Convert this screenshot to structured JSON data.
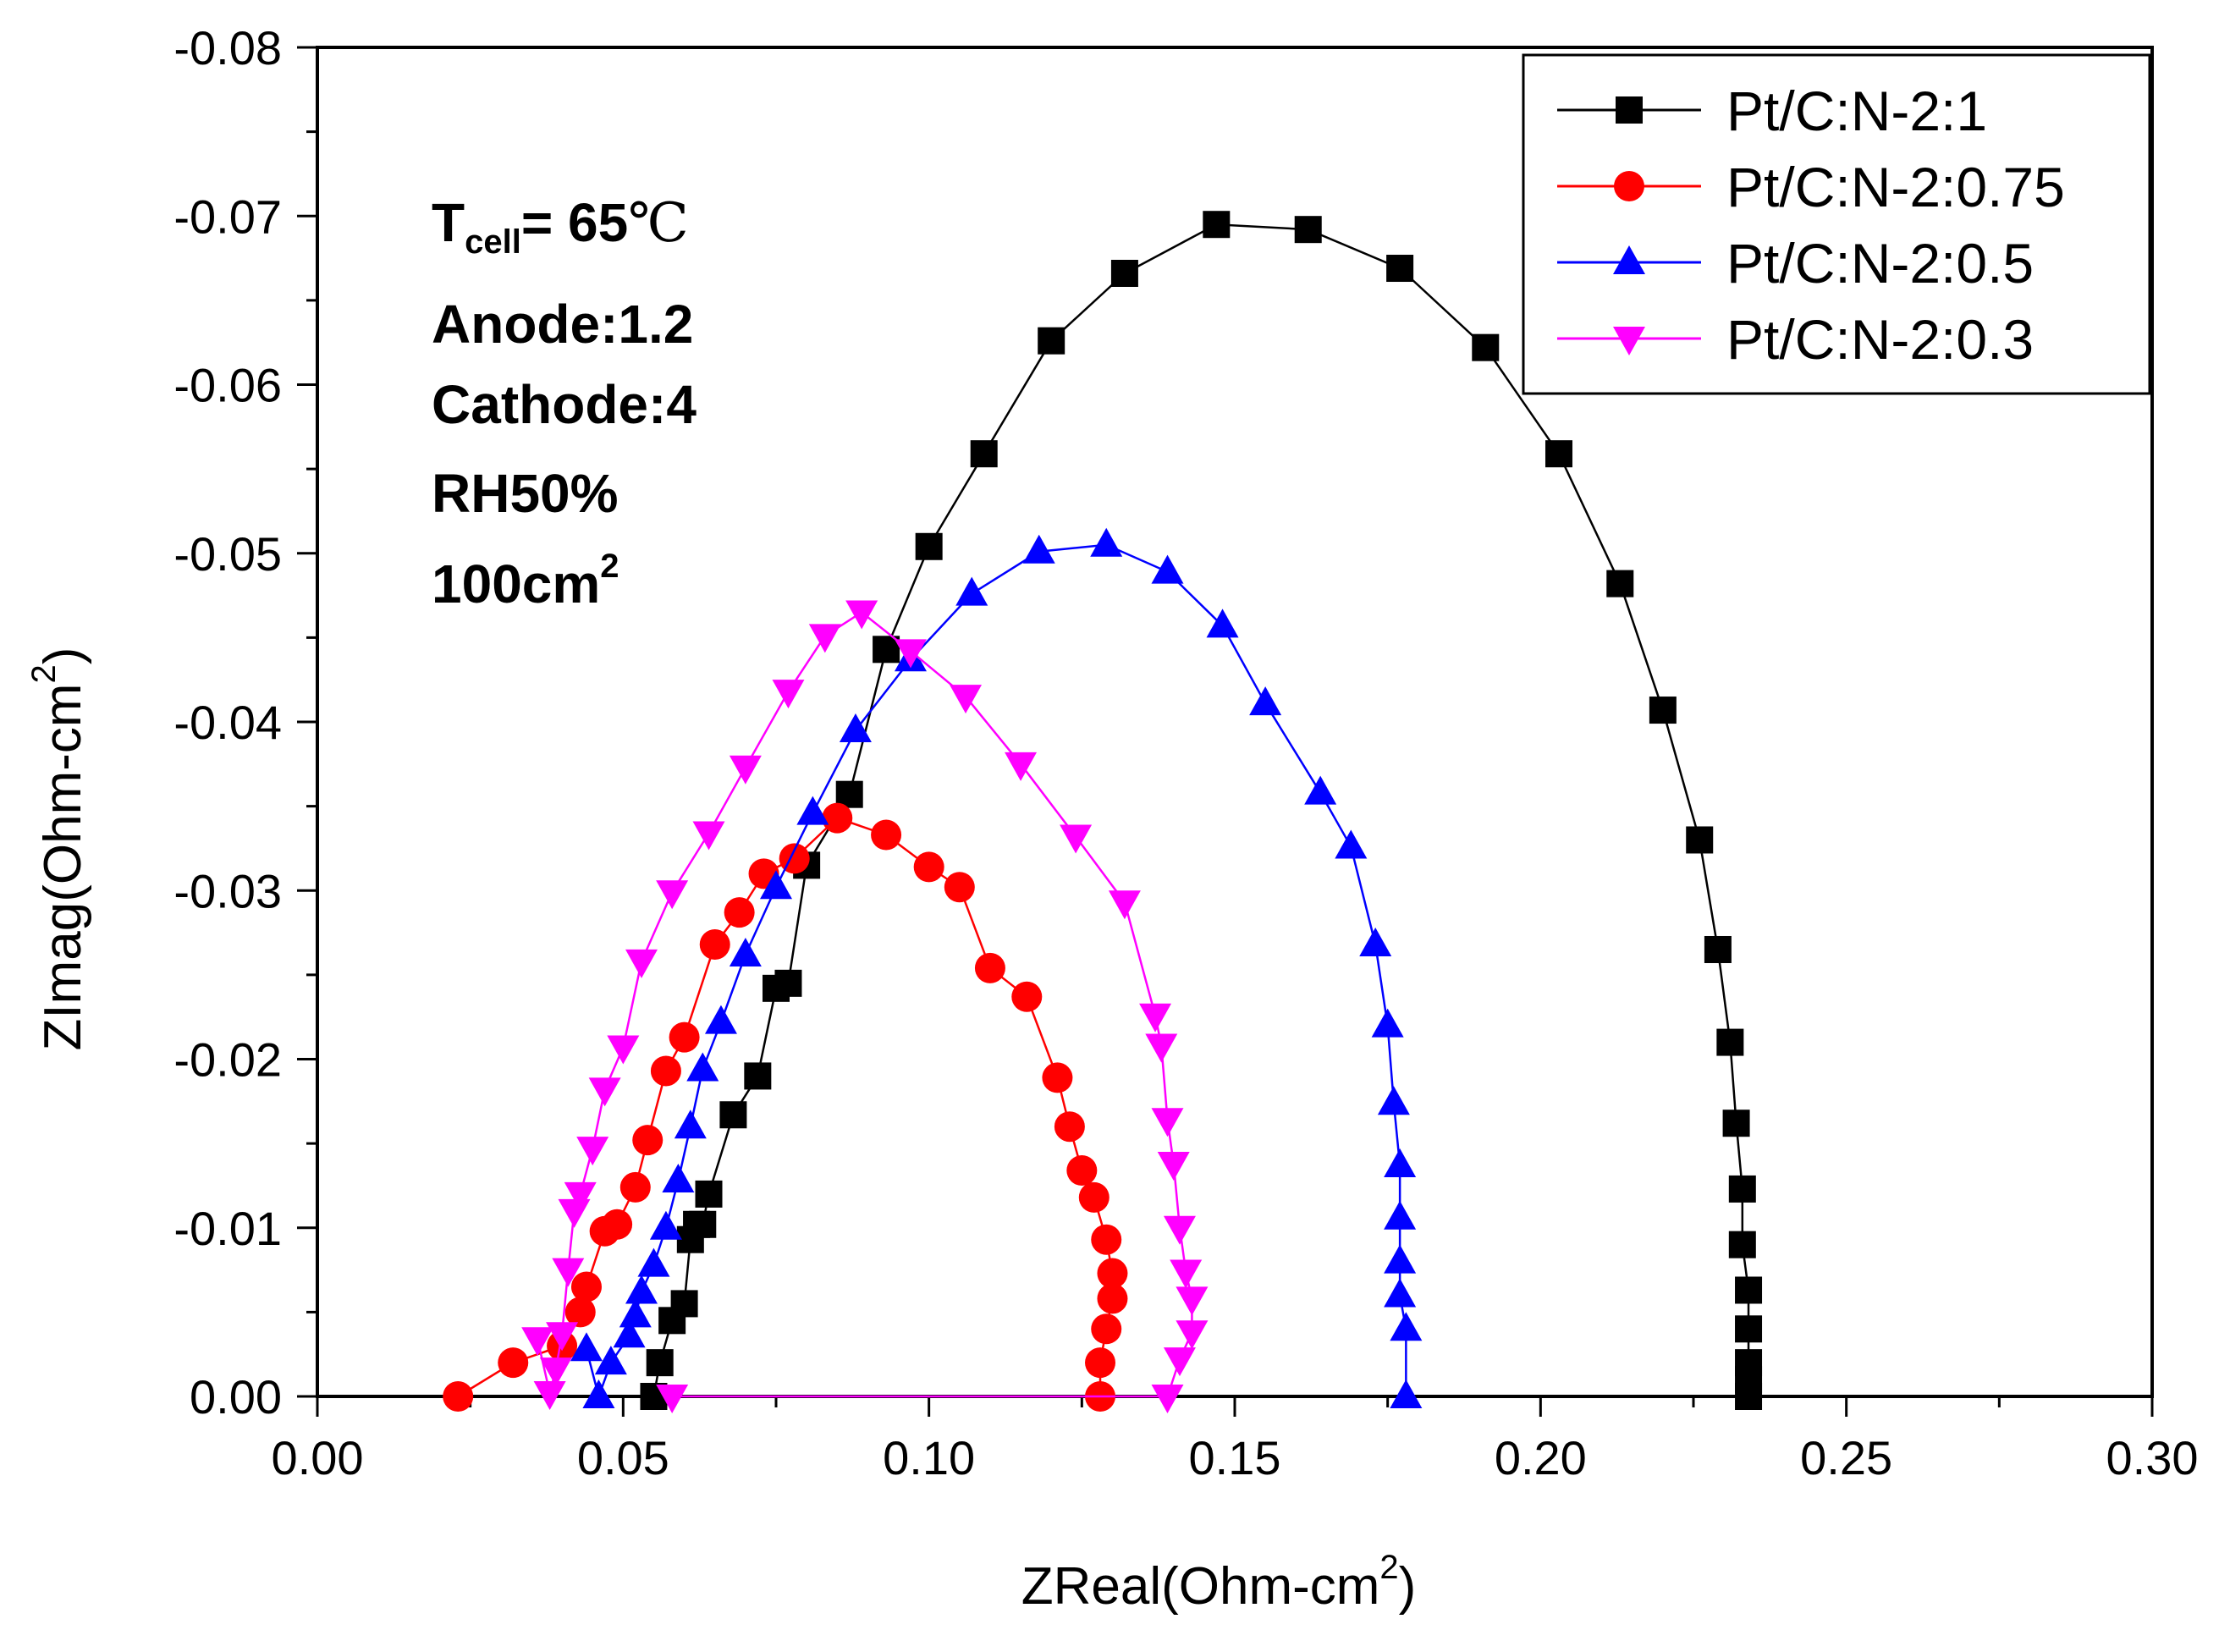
{
  "chart_data": {
    "type": "scatter",
    "xlabel": "ZReal(Ohm-cm",
    "xlabel_sup": "2",
    "xlabel_close": ")",
    "ylabel": "ZImag(Ohm-cm",
    "ylabel_sup": "2",
    "ylabel_close": ")",
    "xlim": [
      0.0,
      0.3
    ],
    "ylim": [
      0.0,
      -0.08
    ],
    "x_ticks": [
      "0.00",
      "0.05",
      "0.10",
      "0.15",
      "0.20",
      "0.25",
      "0.30"
    ],
    "y_ticks": [
      "0.00",
      "-0.01",
      "-0.02",
      "-0.03",
      "-0.04",
      "-0.05",
      "-0.06",
      "-0.07",
      "-0.08"
    ],
    "legend_position": "top-right",
    "annotations": {
      "tcell_main": "T",
      "tcell_sub": "cell",
      "tcell_value": "= 65",
      "tcell_unit": "℃",
      "anode": "Anode:1.2",
      "cathode": "Cathode:4",
      "rh": "RH50%",
      "area_main": "100cm",
      "area_sup": "2"
    },
    "series": [
      {
        "name": "Pt/C:N-2:1",
        "color": "#000000",
        "marker": "square",
        "x": [
          0.055,
          0.056,
          0.058,
          0.06,
          0.061,
          0.062,
          0.063,
          0.064,
          0.068,
          0.072,
          0.075,
          0.077,
          0.08,
          0.087,
          0.093,
          0.1,
          0.109,
          0.12,
          0.132,
          0.147,
          0.162,
          0.177,
          0.191,
          0.203,
          0.213,
          0.22,
          0.226,
          0.229,
          0.231,
          0.232,
          0.233,
          0.233,
          0.234,
          0.234,
          0.234,
          0.234,
          0.234
        ],
        "y": [
          0.0,
          -0.002,
          -0.0045,
          -0.0055,
          -0.0093,
          -0.0102,
          -0.0102,
          -0.012,
          -0.0167,
          -0.019,
          -0.0242,
          -0.0245,
          -0.0315,
          -0.0357,
          -0.0443,
          -0.0504,
          -0.0559,
          -0.0626,
          -0.0666,
          -0.0695,
          -0.0692,
          -0.0669,
          -0.0622,
          -0.0559,
          -0.0482,
          -0.0407,
          -0.033,
          -0.0265,
          -0.021,
          -0.0162,
          -0.0123,
          -0.009,
          -0.0063,
          -0.004,
          -0.002,
          -0.001,
          0.0
        ]
      },
      {
        "name": "Pt/C:N-2:0.75",
        "color": "#ff0000",
        "marker": "circle",
        "x": [
          0.023,
          0.032,
          0.04,
          0.043,
          0.044,
          0.047,
          0.049,
          0.052,
          0.054,
          0.057,
          0.06,
          0.065,
          0.069,
          0.073,
          0.078,
          0.085,
          0.093,
          0.1,
          0.105,
          0.11,
          0.116,
          0.121,
          0.123,
          0.125,
          0.127,
          0.129,
          0.13,
          0.13,
          0.129,
          0.128,
          0.128
        ],
        "y": [
          0.0,
          -0.002,
          -0.003,
          -0.005,
          -0.0065,
          -0.0098,
          -0.0102,
          -0.0124,
          -0.0152,
          -0.0193,
          -0.0213,
          -0.0268,
          -0.0287,
          -0.031,
          -0.0319,
          -0.0343,
          -0.0333,
          -0.0314,
          -0.0302,
          -0.0254,
          -0.0237,
          -0.0189,
          -0.016,
          -0.0134,
          -0.0118,
          -0.0093,
          -0.0073,
          -0.0058,
          -0.004,
          -0.002,
          0.0
        ]
      },
      {
        "name": "Pt/C:N-2:0.5",
        "color": "#0000ff",
        "marker": "triangle-up",
        "x": [
          0.044,
          0.046,
          0.048,
          0.051,
          0.052,
          0.053,
          0.055,
          0.057,
          0.059,
          0.061,
          0.063,
          0.066,
          0.07,
          0.075,
          0.081,
          0.088,
          0.097,
          0.107,
          0.118,
          0.129,
          0.139,
          0.148,
          0.155,
          0.164,
          0.169,
          0.173,
          0.175,
          0.176,
          0.177,
          0.177,
          0.177,
          0.177,
          0.178,
          0.178
        ],
        "y": [
          -0.0028,
          0.0,
          -0.002,
          -0.0036,
          -0.0048,
          -0.0062,
          -0.0078,
          -0.01,
          -0.0128,
          -0.016,
          -0.0194,
          -0.0222,
          -0.0262,
          -0.0302,
          -0.0346,
          -0.0395,
          -0.0437,
          -0.0476,
          -0.0501,
          -0.0505,
          -0.0489,
          -0.0457,
          -0.0411,
          -0.0358,
          -0.0326,
          -0.0268,
          -0.022,
          -0.0174,
          -0.0137,
          -0.0106,
          -0.008,
          -0.006,
          -0.004,
          0.0
        ]
      },
      {
        "name": "Pt/C:N-2:0.3",
        "color": "#ff00ff",
        "marker": "triangle-down",
        "x": [
          0.036,
          0.038,
          0.039,
          0.04,
          0.041,
          0.042,
          0.043,
          0.045,
          0.047,
          0.05,
          0.053,
          0.058,
          0.064,
          0.07,
          0.077,
          0.083,
          0.089,
          0.097,
          0.106,
          0.115,
          0.124,
          0.132,
          0.137,
          0.138,
          0.139,
          0.14,
          0.141,
          0.142,
          0.143,
          0.143,
          0.141,
          0.139,
          0.058
        ],
        "y": [
          -0.0034,
          -0.0002,
          -0.0016,
          -0.0037,
          -0.0075,
          -0.011,
          -0.012,
          -0.0147,
          -0.0182,
          -0.0207,
          -0.0258,
          -0.0299,
          -0.0334,
          -0.0373,
          -0.0418,
          -0.0451,
          -0.0465,
          -0.0442,
          -0.0415,
          -0.0375,
          -0.0332,
          -0.0293,
          -0.0226,
          -0.0208,
          -0.0164,
          -0.0138,
          -0.01,
          -0.0074,
          -0.0058,
          -0.0038,
          -0.0022,
          0.0,
          0.0
        ]
      }
    ]
  }
}
